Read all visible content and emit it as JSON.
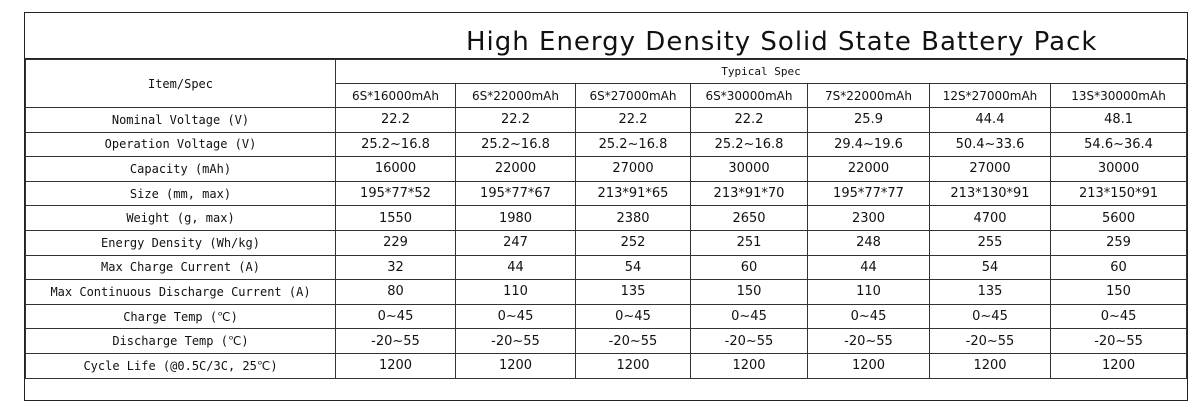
{
  "title": "High Energy Density Solid State Battery Pack",
  "header": {
    "item_spec": "Item/Spec",
    "typical_spec": "Typical Spec",
    "models": [
      "6S*16000mAh",
      "6S*22000mAh",
      "6S*27000mAh",
      "6S*30000mAh",
      "7S*22000mAh",
      "12S*27000mAh",
      "13S*30000mAh"
    ]
  },
  "rows": [
    {
      "label": "Nominal Voltage (V)",
      "values": [
        "22.2",
        "22.2",
        "22.2",
        "22.2",
        "25.9",
        "44.4",
        "48.1"
      ]
    },
    {
      "label": "Operation Voltage (V)",
      "values": [
        "25.2~16.8",
        "25.2~16.8",
        "25.2~16.8",
        "25.2~16.8",
        "29.4~19.6",
        "50.4~33.6",
        "54.6~36.4"
      ]
    },
    {
      "label": "Capacity (mAh)",
      "values": [
        "16000",
        "22000",
        "27000",
        "30000",
        "22000",
        "27000",
        "30000"
      ]
    },
    {
      "label": "Size (mm, max)",
      "values": [
        "195*77*52",
        "195*77*67",
        "213*91*65",
        "213*91*70",
        "195*77*77",
        "213*130*91",
        "213*150*91"
      ]
    },
    {
      "label": "Weight (g, max)",
      "values": [
        "1550",
        "1980",
        "2380",
        "2650",
        "2300",
        "4700",
        "5600"
      ]
    },
    {
      "label": "Energy Density (Wh/kg)",
      "values": [
        "229",
        "247",
        "252",
        "251",
        "248",
        "255",
        "259"
      ]
    },
    {
      "label": "Max Charge Current (A)",
      "values": [
        "32",
        "44",
        "54",
        "60",
        "44",
        "54",
        "60"
      ]
    },
    {
      "label": "Max Continuous Discharge Current (A)",
      "values": [
        "80",
        "110",
        "135",
        "150",
        "110",
        "135",
        "150"
      ]
    },
    {
      "label": "Charge Temp (℃)",
      "values": [
        "0~45",
        "0~45",
        "0~45",
        "0~45",
        "0~45",
        "0~45",
        "0~45"
      ]
    },
    {
      "label": "Discharge Temp (℃)",
      "values": [
        "-20~55",
        "-20~55",
        "-20~55",
        "-20~55",
        "-20~55",
        "-20~55",
        "-20~55"
      ]
    },
    {
      "label": "Cycle Life (@0.5C/3C, 25℃)",
      "values": [
        "1200",
        "1200",
        "1200",
        "1200",
        "1200",
        "1200",
        "1200"
      ]
    }
  ]
}
